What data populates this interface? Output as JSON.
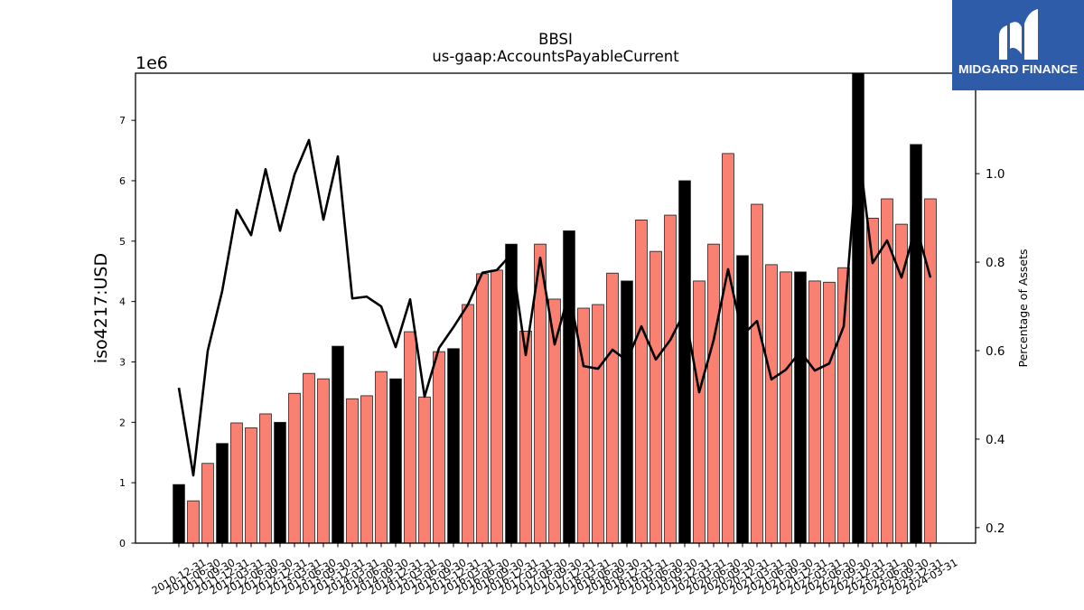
{
  "logo": {
    "text": "MIDGARD FINANCE",
    "background": "#2f5ca9",
    "icon": "midgard-m-icon"
  },
  "chart_data": {
    "type": "bar",
    "title": "BBSI",
    "subtitle": "us-gaap:AccountsPayableCurrent",
    "ylabel": "iso4217:USD",
    "y_offset_label": "1e6",
    "y2label": "Percentage of Assets",
    "grid": false,
    "legend": "none",
    "categories": [
      "2010-12-31",
      "2011-06-30",
      "2011-09-30",
      "2011-12-31",
      "2012-03-31",
      "2012-06-30",
      "2012-09-30",
      "2012-12-31",
      "2013-03-31",
      "2013-06-30",
      "2013-09-30",
      "2013-12-31",
      "2014-03-31",
      "2014-06-30",
      "2014-09-30",
      "2014-12-31",
      "2015-03-31",
      "2015-06-30",
      "2015-09-30",
      "2015-12-31",
      "2016-03-31",
      "2016-06-30",
      "2016-09-30",
      "2016-12-31",
      "2017-03-31",
      "2017-06-30",
      "2017-09-30",
      "2017-12-31",
      "2018-03-31",
      "2018-06-30",
      "2018-09-30",
      "2018-12-31",
      "2019-03-31",
      "2019-06-30",
      "2019-09-30",
      "2019-12-31",
      "2020-03-31",
      "2020-06-30",
      "2020-09-30",
      "2020-12-31",
      "2021-03-31",
      "2021-06-30",
      "2021-09-30",
      "2021-12-31",
      "2022-03-31",
      "2022-06-30",
      "2022-09-30",
      "2022-12-31",
      "2023-03-31",
      "2023-06-30",
      "2023-09-30",
      "2023-12-31",
      "2024-03-31"
    ],
    "ylim": [
      0,
      7780000
    ],
    "y_ticks": [
      0,
      1000000,
      2000000,
      3000000,
      4000000,
      5000000,
      6000000,
      7000000
    ],
    "y_tick_labels": [
      "0",
      "1",
      "2",
      "3",
      "4",
      "5",
      "6",
      "7"
    ],
    "y2lim": [
      0.165,
      1.227
    ],
    "y2_ticks": [
      0.2,
      0.4,
      0.6,
      0.8,
      1.0
    ],
    "y2_tick_labels": [
      "0.2",
      "0.4",
      "0.6",
      "0.8",
      "1.0"
    ],
    "series": [
      {
        "type": "bar",
        "axis": "left",
        "values": [
          970000,
          700000,
          1320000,
          1650000,
          1990000,
          1910000,
          2140000,
          2000000,
          2480000,
          2810000,
          2720000,
          3260000,
          2390000,
          2440000,
          2840000,
          2720000,
          3500000,
          2420000,
          3170000,
          3220000,
          3950000,
          4460000,
          4520000,
          4950000,
          3510000,
          4950000,
          4040000,
          5170000,
          3890000,
          3950000,
          4470000,
          4340000,
          5350000,
          4830000,
          5430000,
          6000000,
          4340000,
          4950000,
          6450000,
          4760000,
          5610000,
          4610000,
          4490000,
          4490000,
          4340000,
          4320000,
          4560000,
          7800000,
          5380000,
          5700000,
          5280000,
          6600000,
          5700000
        ],
        "colors": [
          "#000000",
          "#fa8072",
          "#fa8072",
          "#000000",
          "#fa8072",
          "#fa8072",
          "#fa8072",
          "#000000",
          "#fa8072",
          "#fa8072",
          "#fa8072",
          "#000000",
          "#fa8072",
          "#fa8072",
          "#fa8072",
          "#000000",
          "#fa8072",
          "#fa8072",
          "#fa8072",
          "#000000",
          "#fa8072",
          "#fa8072",
          "#fa8072",
          "#000000",
          "#fa8072",
          "#fa8072",
          "#fa8072",
          "#000000",
          "#fa8072",
          "#fa8072",
          "#fa8072",
          "#000000",
          "#fa8072",
          "#fa8072",
          "#fa8072",
          "#000000",
          "#fa8072",
          "#fa8072",
          "#fa8072",
          "#000000",
          "#fa8072",
          "#fa8072",
          "#fa8072",
          "#000000",
          "#fa8072",
          "#fa8072",
          "#fa8072",
          "#000000",
          "#fa8072",
          "#fa8072",
          "#fa8072",
          "#000000",
          "#fa8072"
        ],
        "edge_color": "#1a1a1a"
      },
      {
        "type": "line",
        "axis": "right",
        "color": "#000000",
        "values": [
          0.516,
          0.318,
          0.6,
          0.735,
          0.918,
          0.861,
          1.01,
          0.871,
          0.998,
          1.076,
          0.896,
          1.039,
          0.718,
          0.722,
          0.7,
          0.608,
          0.716,
          0.496,
          0.606,
          0.653,
          0.704,
          0.776,
          0.782,
          0.818,
          0.59,
          0.81,
          0.614,
          0.731,
          0.565,
          0.559,
          0.602,
          0.578,
          0.655,
          0.58,
          0.624,
          0.688,
          0.506,
          0.624,
          0.784,
          0.635,
          0.667,
          0.535,
          0.557,
          0.598,
          0.555,
          0.571,
          0.655,
          1.065,
          0.798,
          0.849,
          0.765,
          0.882,
          0.765
        ]
      }
    ]
  }
}
